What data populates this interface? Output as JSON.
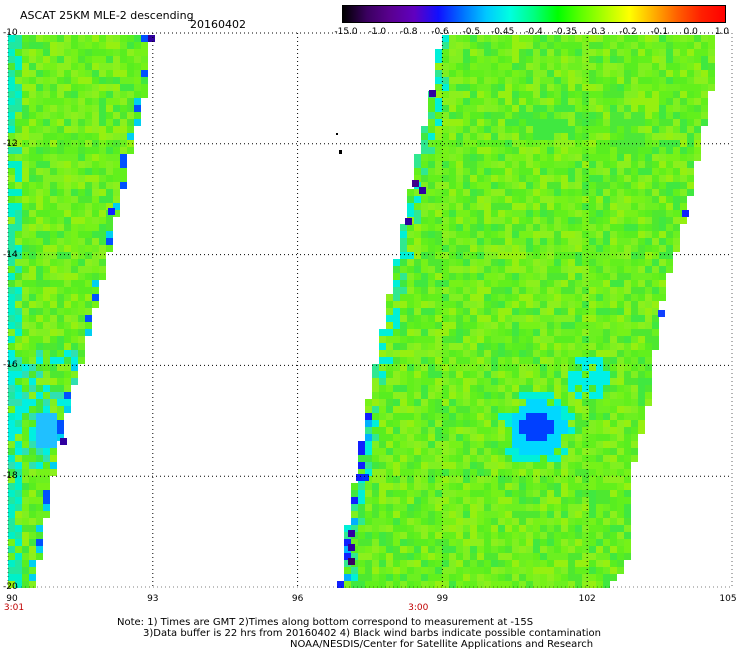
{
  "header": {
    "title": "ASCAT 25KM MLE-2 descending",
    "date": "20160402"
  },
  "colorbar": {
    "labels": [
      "-15.0",
      "-1.0",
      "-0.8",
      "-0.6",
      "-0.5",
      "-0.45",
      "-0.4",
      "-0.35",
      "-0.3",
      "-0.2",
      "-0.1",
      "0.0",
      "1.0"
    ],
    "colors": [
      "#000000",
      "#3a0060",
      "#5a0090",
      "#6000c0",
      "#1010ff",
      "#0070ff",
      "#00c8ff",
      "#00ffe0",
      "#00ff80",
      "#00ff00",
      "#60ff00",
      "#b0ff00",
      "#ffff00",
      "#ffb000",
      "#ff6000",
      "#ff2000",
      "#ff0000"
    ]
  },
  "map": {
    "lon_labels": [
      "90",
      "93",
      "96",
      "99",
      "102",
      "105"
    ],
    "lon_values": [
      90,
      93,
      96,
      99,
      102,
      105
    ],
    "lat_labels": [
      "-10",
      "-12",
      "-14",
      "-16",
      "-18",
      "-20"
    ],
    "lat_values": [
      -10,
      -12,
      -14,
      -16,
      -18,
      -20
    ],
    "lon_range": [
      90,
      105
    ],
    "lat_range": [
      -10,
      -20
    ],
    "time_labels": [
      {
        "text": "3:01",
        "lon": 90
      },
      {
        "text": "3:00",
        "lon": 98.5
      }
    ],
    "field_description_colors": {
      "background": "#6cf020",
      "light": "#90f020",
      "cyan": "#00f0e0",
      "blue": "#0040ff",
      "purple": "#3000a0"
    }
  },
  "notes": {
    "line1": "Note: 1) Times are GMT 2)Times along bottom correspond to measurement at -15S",
    "line2": "3)Data buffer is 22 hrs from 20160402 4) Black wind barbs indicate possible contamination",
    "line3": "NOAA/NESDIS/Center for Satellite Applications and Research"
  }
}
